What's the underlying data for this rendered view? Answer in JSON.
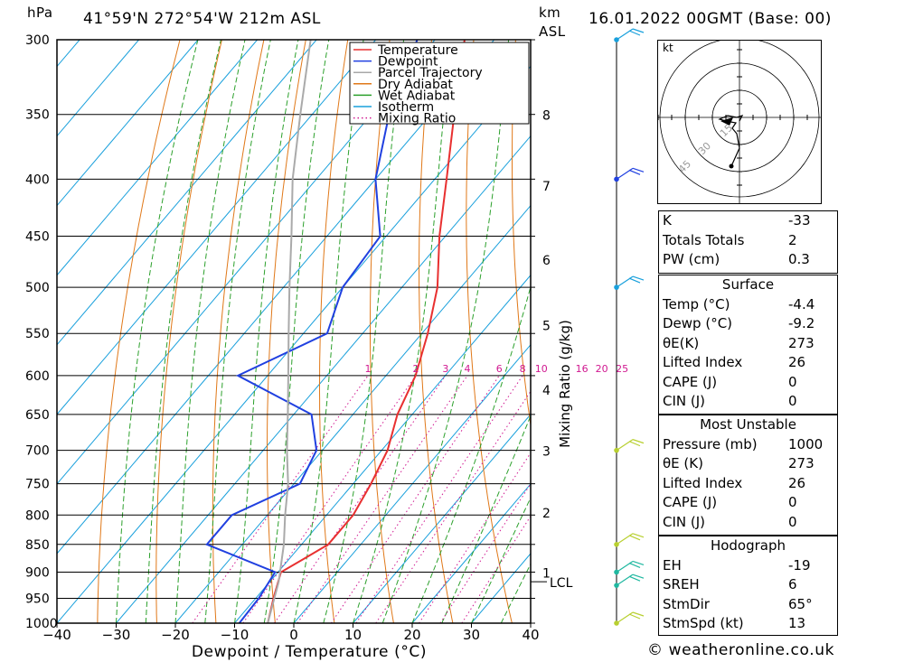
{
  "header": {
    "pressure_unit": "hPa",
    "location": "41°59'N  272°54'W  212m  ASL",
    "height_unit": "km",
    "height_unit2": "ASL",
    "datetime": "16.01.2022  00GMT  (Base: 00)"
  },
  "chart_data": {
    "type": "line",
    "chart_kind": "skew-T log-P sounding",
    "xlabel": "Dewpoint / Temperature (°C)",
    "ylabel": "hPa",
    "xlim": [
      -40,
      40
    ],
    "ylim": [
      1000,
      300
    ],
    "x_ticks": [
      "−40",
      "−30",
      "−20",
      "−10",
      "0",
      "10",
      "20",
      "30",
      "40"
    ],
    "pressure_ticks": [
      "300",
      "350",
      "400",
      "450",
      "500",
      "550",
      "600",
      "650",
      "700",
      "750",
      "800",
      "850",
      "900",
      "950",
      "1000"
    ],
    "km_ticks": [
      {
        "label": "8",
        "p": 350
      },
      {
        "label": "7",
        "p": 405
      },
      {
        "label": "6",
        "p": 472
      },
      {
        "label": "5",
        "p": 540
      },
      {
        "label": "4",
        "p": 617
      },
      {
        "label": "3",
        "p": 700
      },
      {
        "label": "2",
        "p": 795
      },
      {
        "label": "1",
        "p": 900
      }
    ],
    "lcl": {
      "label": "LCL",
      "p": 918
    },
    "mixing_ratio_label": "Mixing Ratio (g/kg)",
    "mixing_ratio_lines": [
      "1",
      "2",
      "3",
      "4",
      "6",
      "8",
      "10",
      "16",
      "20",
      "25"
    ],
    "legend": [
      "Temperature",
      "Dewpoint",
      "Parcel Trajectory",
      "Dry Adiabat",
      "Wet Adiabat",
      "Isotherm",
      "Mixing Ratio"
    ],
    "series": [
      {
        "name": "Temperature",
        "color": "#e83030",
        "points": [
          [
            1000,
            -4.4
          ],
          [
            950,
            -7
          ],
          [
            900,
            -9.5
          ],
          [
            875,
            -7.5
          ],
          [
            850,
            -5.5
          ],
          [
            800,
            -5.5
          ],
          [
            750,
            -7
          ],
          [
            700,
            -9
          ],
          [
            650,
            -12.5
          ],
          [
            600,
            -15
          ],
          [
            550,
            -19
          ],
          [
            500,
            -24
          ],
          [
            450,
            -31
          ],
          [
            400,
            -38
          ],
          [
            350,
            -46
          ],
          [
            300,
            -55
          ]
        ]
      },
      {
        "name": "Dewpoint",
        "color": "#2040e0",
        "points": [
          [
            1000,
            -9.2
          ],
          [
            950,
            -9.5
          ],
          [
            900,
            -10.5
          ],
          [
            850,
            -26
          ],
          [
            800,
            -26
          ],
          [
            750,
            -19
          ],
          [
            700,
            -21
          ],
          [
            650,
            -27
          ],
          [
            600,
            -45
          ],
          [
            550,
            -36
          ],
          [
            500,
            -40
          ],
          [
            450,
            -41
          ],
          [
            400,
            -50
          ],
          [
            350,
            -57
          ],
          [
            300,
            -63
          ]
        ]
      },
      {
        "name": "Parcel Trajectory",
        "color": "#aaaaaa",
        "points": [
          [
            1000,
            -4.4
          ],
          [
            918,
            -8.5
          ],
          [
            850,
            -13
          ],
          [
            800,
            -17
          ],
          [
            750,
            -21
          ],
          [
            700,
            -26
          ],
          [
            650,
            -31
          ],
          [
            600,
            -36.5
          ],
          [
            550,
            -42.5
          ],
          [
            500,
            -49
          ],
          [
            450,
            -56
          ],
          [
            400,
            -64
          ],
          [
            350,
            -72
          ],
          [
            300,
            -81
          ]
        ]
      }
    ]
  },
  "hodograph": {
    "unit": "kt",
    "ring_labels": [
      "15",
      "30",
      "45"
    ]
  },
  "indices": {
    "k": {
      "label": "K",
      "value": "-33"
    },
    "tt": {
      "label": "Totals Totals",
      "value": "2"
    },
    "pw": {
      "label": "PW (cm)",
      "value": "0.3"
    }
  },
  "surface": {
    "title": "Surface",
    "temp": {
      "label": "Temp (°C)",
      "value": "-4.4"
    },
    "dewp": {
      "label": "Dewp (°C)",
      "value": "-9.2"
    },
    "theta_e": {
      "label": "θE(K)",
      "value": "273"
    },
    "li": {
      "label": "Lifted Index",
      "value": "26"
    },
    "cape": {
      "label": "CAPE (J)",
      "value": "0"
    },
    "cin": {
      "label": "CIN (J)",
      "value": "0"
    }
  },
  "most_unstable": {
    "title": "Most Unstable",
    "pressure": {
      "label": "Pressure (mb)",
      "value": "1000"
    },
    "theta_e": {
      "label": "θE (K)",
      "value": "273"
    },
    "li": {
      "label": "Lifted Index",
      "value": "26"
    },
    "cape": {
      "label": "CAPE (J)",
      "value": "0"
    },
    "cin": {
      "label": "CIN (J)",
      "value": "0"
    }
  },
  "hodo_stats": {
    "title": "Hodograph",
    "eh": {
      "label": "EH",
      "value": "-19"
    },
    "sreh": {
      "label": "SREH",
      "value": "6"
    },
    "stmdir": {
      "label": "StmDir",
      "value": "65°"
    },
    "stmspd": {
      "label": "StmSpd (kt)",
      "value": "13"
    }
  },
  "credit": "© weatheronline.co.uk"
}
